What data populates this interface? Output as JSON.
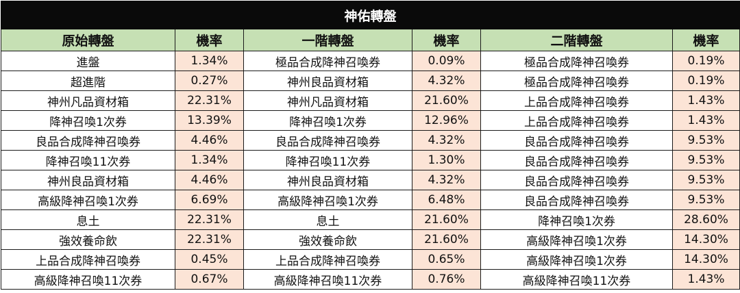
{
  "title": "神佑轉盤",
  "headers": [
    "原始轉盤",
    "機率",
    "一階轉盤",
    "機率",
    "二階轉盤",
    "機率"
  ],
  "rows": [
    [
      "進盤",
      "1.34%",
      "極品合成降神召喚券",
      "0.09%",
      "極品合成降神召喚券",
      "0.19%"
    ],
    [
      "超進階",
      "0.27%",
      "神州良品資材箱",
      "4.32%",
      "極品合成降神召喚券",
      "0.19%"
    ],
    [
      "神州凡品資材箱",
      "22.31%",
      "神州凡品資材箱",
      "21.60%",
      "上品合成降神召喚券",
      "1.43%"
    ],
    [
      "降神召喚1次券",
      "13.39%",
      "降神召喚1次券",
      "12.96%",
      "上品合成降神召喚券",
      "1.43%"
    ],
    [
      "良品合成降神召喚券",
      "4.46%",
      "良品合成降神召喚券",
      "4.32%",
      "良品合成降神召喚券",
      "9.53%"
    ],
    [
      "降神召喚11次券",
      "1.34%",
      "降神召喚11次券",
      "1.30%",
      "良品合成降神召喚券",
      "9.53%"
    ],
    [
      "神州良品資材箱",
      "4.46%",
      "神州良品資材箱",
      "4.32%",
      "良品合成降神召喚券",
      "9.53%"
    ],
    [
      "高級降神召喚1次券",
      "6.69%",
      "高級降神召喚1次券",
      "6.48%",
      "良品合成降神召喚券",
      "9.53%"
    ],
    [
      "息土",
      "22.31%",
      "息土",
      "21.60%",
      "降神召喚1次券",
      "28.60%"
    ],
    [
      "強效養命飲",
      "22.31%",
      "強效養命飲",
      "21.60%",
      "高級降神召喚1次券",
      "14.30%"
    ],
    [
      "上品合成降神召喚券",
      "0.45%",
      "上品合成降神召喚券",
      "0.65%",
      "高級降神召喚1次券",
      "14.30%"
    ],
    [
      "高級降神召喚11次券",
      "0.67%",
      "高級降神召喚11次券",
      "0.76%",
      "高級降神召喚11次券",
      "1.43%"
    ]
  ],
  "colors": {
    "title_bg": "#0a0a0a",
    "header_bg": "#c6e0b4",
    "rate_bg": "#fce4d6",
    "border": "#1a1a1a"
  }
}
